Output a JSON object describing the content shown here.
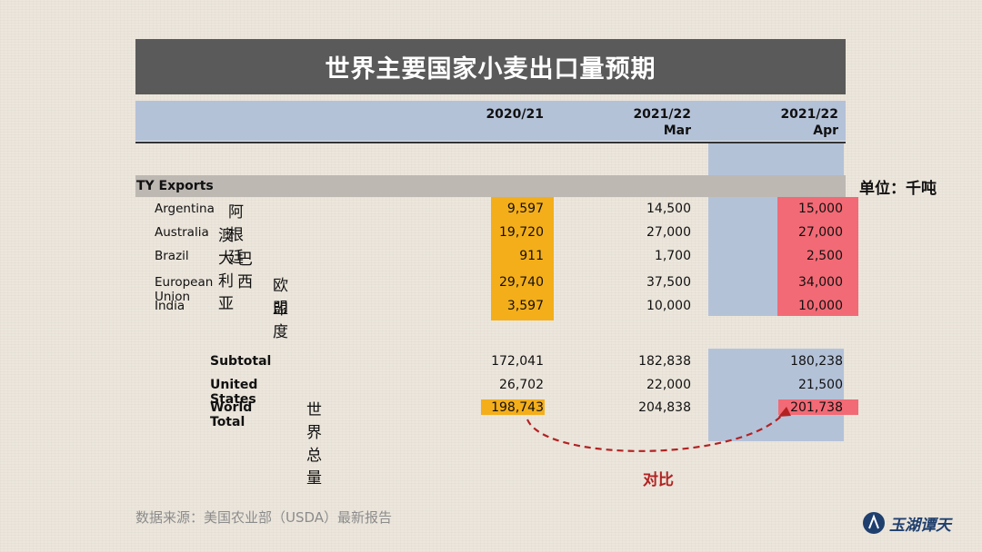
{
  "title": "世界主要国家小麦出口量预期",
  "unit": "单位：千吨",
  "section_label": "TY Exports",
  "columns": [
    {
      "line1": "2020/21",
      "line2": ""
    },
    {
      "line1": "2021/22",
      "line2": "Mar"
    },
    {
      "line1": "2021/22",
      "line2": "Apr"
    }
  ],
  "rows": [
    {
      "en": "Argentina",
      "cn": "阿根廷",
      "values": [
        "9,597",
        "14,500",
        "15,000"
      ]
    },
    {
      "en": "Australia",
      "cn": "澳大利亚",
      "values": [
        "19,720",
        "27,000",
        "27,000"
      ]
    },
    {
      "en": "Brazil",
      "cn": "巴西",
      "values": [
        "911",
        "1,700",
        "2,500"
      ]
    },
    {
      "en": "European Union",
      "cn": "欧盟",
      "values": [
        "29,740",
        "37,500",
        "34,000"
      ]
    },
    {
      "en": "India",
      "cn": "印度",
      "values": [
        "3,597",
        "10,000",
        "10,000"
      ]
    }
  ],
  "summary": [
    {
      "en": "Subtotal",
      "cn": "",
      "values": [
        "172,041",
        "182,838",
        "180,238"
      ]
    },
    {
      "en": "United States",
      "cn": "",
      "values": [
        "26,702",
        "22,000",
        "21,500"
      ]
    },
    {
      "en": "World Total",
      "cn": "世界总量",
      "values": [
        "198,743",
        "204,838",
        "201,738"
      ]
    }
  ],
  "compare_label": "对比",
  "source": "数据来源：美国农业部（USDA）最新报告",
  "logo_text": "玉湖谭天",
  "colors": {
    "highlight_2020": "#f4ae1a",
    "highlight_apr": "#f26a75",
    "blue_band": "#b4c2d8",
    "title_bg": "#5a5a5a",
    "arrow": "#b22222"
  },
  "chart_data": {
    "type": "table",
    "title": "世界主要国家小麦出口量预期",
    "unit": "单位：千吨",
    "columns": [
      "2020/21",
      "2021/22 Mar",
      "2021/22 Apr"
    ],
    "rows": [
      {
        "label": "Argentina 阿根廷",
        "values": [
          9597,
          14500,
          15000
        ]
      },
      {
        "label": "Australia 澳大利亚",
        "values": [
          19720,
          27000,
          27000
        ]
      },
      {
        "label": "Brazil 巴西",
        "values": [
          911,
          1700,
          2500
        ]
      },
      {
        "label": "European Union 欧盟",
        "values": [
          29740,
          37500,
          34000
        ]
      },
      {
        "label": "India 印度",
        "values": [
          3597,
          10000,
          10000
        ]
      },
      {
        "label": "Subtotal",
        "values": [
          172041,
          182838,
          180238
        ]
      },
      {
        "label": "United States",
        "values": [
          26702,
          22000,
          21500
        ]
      },
      {
        "label": "World Total 世界总量",
        "values": [
          198743,
          204838,
          201738
        ]
      }
    ]
  }
}
